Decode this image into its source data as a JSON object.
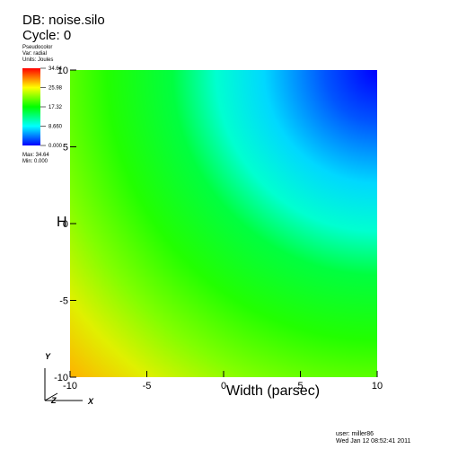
{
  "header": {
    "db_line": "DB: noise.silo",
    "cycle_line": "Cycle: 0"
  },
  "legend": {
    "plot_type": "Pseudocolor",
    "var_line": "Var: radial",
    "units_line": "Units: Joules",
    "max_line": "Max: 34.64",
    "min_line": "Min: 0.000",
    "ticks": [
      "34.64",
      "25.98",
      "17.32",
      "8.660",
      "0.000"
    ],
    "tick_values": [
      34.64,
      25.98,
      17.32,
      8.66,
      0.0
    ],
    "colors": [
      "#ff0000",
      "#ffff00",
      "#00ff00",
      "#00ffff",
      "#0000ff"
    ]
  },
  "footer": {
    "user_line": "user: miller86",
    "date_line": "Wed Jan 12 08:52:41 2011"
  },
  "triad": {
    "x_label": "X",
    "y_label": "Y",
    "z_label": "Z"
  },
  "chart_data": {
    "type": "heatmap",
    "title": "",
    "xlabel": "Width (parsec)",
    "ylabel": "H",
    "xlim": [
      -10,
      10
    ],
    "ylim": [
      -10,
      10
    ],
    "x_ticks": [
      -10,
      -5,
      0,
      5,
      10
    ],
    "y_ticks": [
      -10,
      -5,
      0,
      5,
      10
    ],
    "x_tick_labels": [
      "-10",
      "-5",
      "0",
      "5",
      "10"
    ],
    "y_tick_labels": [
      "-10",
      "-5",
      "0",
      "5",
      "10"
    ],
    "field": "radial",
    "field_min": 0.0,
    "field_max": 34.64,
    "corner_values": {
      "bottom_left": 28.3,
      "top_left": 14.1,
      "bottom_right": 14.1,
      "top_right": 0.0
    }
  }
}
